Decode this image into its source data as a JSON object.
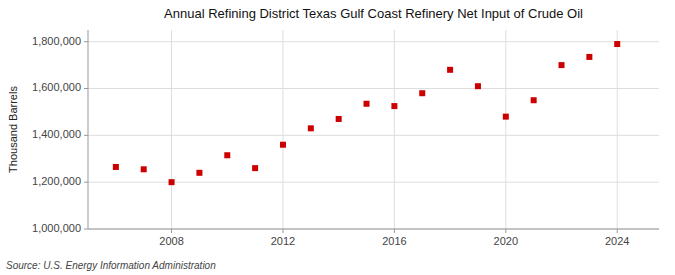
{
  "chart_data": {
    "type": "scatter",
    "title": "Annual Refining District Texas Gulf Coast Refinery Net Input of Crude Oil",
    "y_label": "Thousand Barrels",
    "source": "Source: U.S. Energy Information Administration",
    "x": [
      2006,
      2007,
      2008,
      2009,
      2010,
      2011,
      2012,
      2013,
      2014,
      2015,
      2016,
      2017,
      2018,
      2019,
      2020,
      2021,
      2022,
      2023,
      2024
    ],
    "values": [
      1265000,
      1255000,
      1200000,
      1240000,
      1315000,
      1260000,
      1360000,
      1430000,
      1470000,
      1535000,
      1525000,
      1580000,
      1680000,
      1610000,
      1480000,
      1550000,
      1700000,
      1735000,
      1790000
    ],
    "color": "#cc0000",
    "marker": "square",
    "xlim": [
      2005.0,
      2025.5
    ],
    "ylim": [
      1000000,
      1850000
    ],
    "xticks": [
      2008,
      2012,
      2016,
      2020,
      2024
    ],
    "yticks": [
      {
        "value": 1000000,
        "label": "1,000,000"
      },
      {
        "value": 1200000,
        "label": "1,200,000"
      },
      {
        "value": 1400000,
        "label": "1,400,000"
      },
      {
        "value": 1600000,
        "label": "1,600,000"
      },
      {
        "value": 1800000,
        "label": "1,800,000"
      }
    ],
    "grid": true
  }
}
